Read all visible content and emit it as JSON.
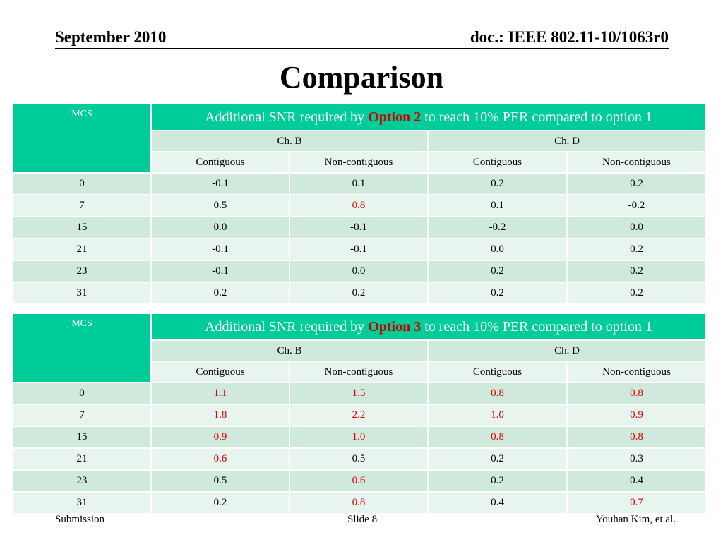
{
  "header": {
    "date": "September 2010",
    "doc": "doc.: IEEE 802.11-10/1063r0"
  },
  "title": "Comparison",
  "tables": [
    {
      "mcs_label": "MCS",
      "heading_pre": "Additional SNR required by ",
      "heading_option": "Option 2",
      "heading_post": " to reach 10% PER compared to option 1",
      "channels": [
        "Ch. B",
        "Ch. D"
      ],
      "subcols": [
        "Contiguous",
        "Non-contiguous",
        "Contiguous",
        "Non-contiguous"
      ],
      "rows": [
        {
          "mcs": "0",
          "vals": [
            "-0.1",
            "0.1",
            "0.2",
            "0.2"
          ],
          "red": [
            false,
            false,
            false,
            false
          ]
        },
        {
          "mcs": "7",
          "vals": [
            "0.5",
            "0.8",
            "0.1",
            "-0.2"
          ],
          "red": [
            false,
            true,
            false,
            false
          ]
        },
        {
          "mcs": "15",
          "vals": [
            "0.0",
            "-0.1",
            "-0.2",
            "0.0"
          ],
          "red": [
            false,
            false,
            false,
            false
          ]
        },
        {
          "mcs": "21",
          "vals": [
            "-0.1",
            "-0.1",
            "0.0",
            "0.2"
          ],
          "red": [
            false,
            false,
            false,
            false
          ]
        },
        {
          "mcs": "23",
          "vals": [
            "-0.1",
            "0.0",
            "0.2",
            "0.2"
          ],
          "red": [
            false,
            false,
            false,
            false
          ]
        },
        {
          "mcs": "31",
          "vals": [
            "0.2",
            "0.2",
            "0.2",
            "0.2"
          ],
          "red": [
            false,
            false,
            false,
            false
          ]
        }
      ]
    },
    {
      "mcs_label": "MCS",
      "heading_pre": "Additional SNR required by ",
      "heading_option": "Option 3",
      "heading_post": " to reach 10% PER compared to option 1",
      "channels": [
        "Ch. B",
        "Ch. D"
      ],
      "subcols": [
        "Contiguous",
        "Non-contiguous",
        "Contiguous",
        "Non-contiguous"
      ],
      "rows": [
        {
          "mcs": "0",
          "vals": [
            "1.1",
            "1.5",
            "0.8",
            "0.8"
          ],
          "red": [
            true,
            true,
            true,
            true
          ]
        },
        {
          "mcs": "7",
          "vals": [
            "1.8",
            "2.2",
            "1.0",
            "0.9"
          ],
          "red": [
            true,
            true,
            true,
            true
          ]
        },
        {
          "mcs": "15",
          "vals": [
            "0.9",
            "1.0",
            "0.8",
            "0.8"
          ],
          "red": [
            true,
            true,
            true,
            true
          ]
        },
        {
          "mcs": "21",
          "vals": [
            "0.6",
            "0.5",
            "0.2",
            "0.3"
          ],
          "red": [
            true,
            false,
            false,
            false
          ]
        },
        {
          "mcs": "23",
          "vals": [
            "0.5",
            "0.6",
            "0.2",
            "0.4"
          ],
          "red": [
            false,
            true,
            false,
            false
          ]
        },
        {
          "mcs": "31",
          "vals": [
            "0.2",
            "0.8",
            "0.4",
            "0.7"
          ],
          "red": [
            false,
            true,
            false,
            true
          ]
        }
      ]
    }
  ],
  "footer": {
    "left": "Submission",
    "center": "Slide 8",
    "right": "Youhan Kim, et al."
  },
  "colors": {
    "header_fill": "#00cc99",
    "row_dark": "#cfe9dd",
    "row_light": "#e8f4ee",
    "highlight": "#dd0000"
  }
}
